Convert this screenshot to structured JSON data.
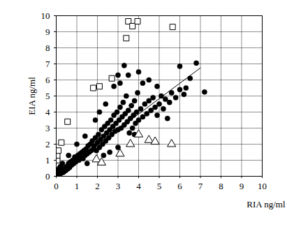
{
  "chart_data": {
    "type": "scatter",
    "x_label": "RIA ng/ml",
    "y_label": "EIA ng/ml",
    "xlim": [
      0,
      10
    ],
    "ylim": [
      0,
      10
    ],
    "xticks": [
      0,
      1,
      2,
      3,
      4,
      5,
      6,
      7,
      8,
      9,
      10
    ],
    "yticks": [
      0,
      1,
      2,
      3,
      4,
      5,
      6,
      7,
      8,
      9,
      10
    ],
    "grid": true,
    "series": [
      {
        "marker": "circle",
        "color": "#000000",
        "x": [
          0.05,
          0.1,
          0.15,
          0.2,
          0.25,
          0.3,
          0.35,
          0.4,
          0.45,
          0.5,
          0.1,
          0.2,
          0.3,
          0.05,
          0.15,
          0.55,
          0.6,
          0.65,
          0.7,
          0.75,
          0.8,
          0.85,
          0.9,
          0.95,
          1.0,
          1.05,
          1.1,
          1.15,
          1.2,
          1.25,
          1.3,
          1.35,
          1.4,
          1.45,
          1.5,
          1.55,
          1.6,
          1.65,
          1.7,
          1.75,
          1.8,
          1.85,
          1.9,
          1.95,
          2.0,
          2.05,
          2.1,
          2.15,
          2.2,
          2.25,
          2.3,
          2.35,
          2.4,
          2.45,
          2.5,
          2.55,
          2.6,
          2.65,
          2.7,
          2.75,
          2.8,
          2.85,
          2.9,
          2.95,
          3.0,
          3.05,
          3.1,
          3.15,
          3.2,
          3.25,
          3.3,
          3.35,
          3.4,
          3.45,
          3.5,
          3.55,
          3.6,
          3.65,
          3.7,
          3.75,
          3.8,
          3.85,
          3.9,
          3.95,
          4.0,
          4.1,
          4.2,
          4.3,
          4.4,
          4.5,
          4.6,
          4.7,
          4.8,
          4.9,
          5.0,
          5.1,
          5.2,
          5.3,
          5.5,
          5.6,
          5.8,
          6.0,
          6.2,
          6.5,
          6.8,
          7.2,
          3.3,
          3.1,
          2.8,
          4.2,
          4.5,
          3.0,
          2.4,
          1.9,
          2.1,
          1.4,
          1.0,
          0.6,
          4.0,
          6.0,
          3.5,
          2.6,
          3.0,
          1.5,
          2.3,
          3.8,
          5.4,
          6.3,
          4.9
        ],
        "values": [
          0.05,
          0.15,
          0.1,
          0.3,
          0.2,
          0.4,
          0.25,
          0.5,
          0.35,
          0.6,
          0.4,
          0.6,
          0.8,
          0.3,
          0.5,
          0.45,
          0.8,
          0.55,
          0.9,
          0.7,
          1.0,
          0.8,
          1.2,
          0.9,
          1.1,
          1.3,
          1.0,
          1.4,
          1.2,
          1.5,
          1.1,
          1.6,
          1.3,
          1.7,
          1.4,
          1.9,
          1.5,
          2.0,
          1.6,
          2.2,
          1.7,
          1.9,
          2.4,
          1.6,
          2.1,
          2.6,
          1.8,
          2.3,
          2.9,
          2.0,
          2.5,
          3.1,
          2.2,
          2.7,
          3.3,
          2.4,
          2.9,
          3.5,
          2.6,
          3.1,
          3.8,
          2.8,
          3.3,
          4.0,
          2.9,
          3.5,
          4.3,
          3.0,
          3.7,
          4.6,
          3.2,
          3.9,
          5.0,
          3.4,
          4.1,
          2.7,
          3.6,
          4.4,
          3.0,
          3.8,
          4.7,
          3.3,
          4.0,
          5.2,
          3.5,
          4.2,
          3.7,
          4.5,
          3.9,
          4.7,
          4.1,
          4.9,
          4.3,
          3.8,
          4.5,
          5.0,
          4.2,
          4.8,
          4.6,
          5.2,
          4.9,
          5.4,
          5.1,
          6.1,
          7.05,
          5.25,
          6.9,
          5.8,
          5.6,
          5.8,
          6.0,
          6.3,
          4.5,
          3.5,
          4.0,
          2.5,
          2.0,
          1.3,
          6.5,
          6.85,
          6.3,
          1.5,
          1.8,
          0.8,
          1.3,
          2.6,
          3.6,
          5.5,
          5.6
        ]
      },
      {
        "marker": "square-open",
        "color": "#000000",
        "x": [
          0.05,
          0.05,
          0.1,
          0.25,
          0.55,
          1.8,
          2.1,
          2.7,
          3.4,
          3.5,
          3.7,
          3.95,
          5.65
        ],
        "values": [
          1.0,
          1.3,
          1.6,
          2.1,
          3.4,
          5.5,
          5.6,
          6.1,
          8.6,
          9.65,
          9.35,
          9.65,
          9.3
        ]
      },
      {
        "marker": "triangle-open",
        "color": "#000000",
        "x": [
          1.95,
          2.2,
          3.1,
          3.6,
          4.0,
          4.5,
          4.8,
          5.6
        ],
        "values": [
          1.05,
          0.85,
          1.4,
          2.0,
          2.6,
          2.25,
          2.15,
          2.0
        ]
      },
      {
        "type": "line",
        "line_style": "solid",
        "color": "#000000",
        "x": [
          0,
          7
        ],
        "values": [
          0.05,
          6.75
        ]
      }
    ]
  }
}
